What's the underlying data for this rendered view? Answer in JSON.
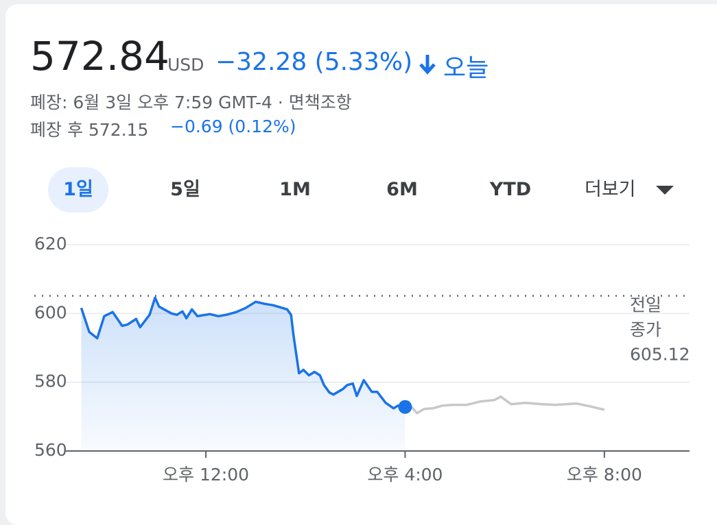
{
  "header": {
    "price": "572.84",
    "currency": "USD",
    "change": "−32.28 (5.33%)",
    "period": "오늘",
    "status": "폐장: 6월 3일 오후 7:59 GMT-4 · 면책조항",
    "after_hours_label": "폐장 후 572.15",
    "after_hours_change": "−0.69 (0.12%)"
  },
  "tabs": {
    "items": [
      "1일",
      "5일",
      "1M",
      "6M",
      "YTD",
      "더보기"
    ],
    "selected": 0
  },
  "chart_data": {
    "type": "line",
    "xlim": [
      9.19,
      21.71
    ],
    "xticks": [
      {
        "value": 12,
        "label": "오후 12:00"
      },
      {
        "value": 16,
        "label": "오후 4:00"
      },
      {
        "value": 20,
        "label": "오후 8:00"
      }
    ],
    "ylim": [
      560,
      620
    ],
    "yticks": [
      560,
      580,
      600,
      620
    ],
    "grid": true,
    "reference_line": {
      "value": 605.12,
      "label": [
        "전일",
        "종가"
      ]
    },
    "series": [
      {
        "color": "#1a73e8",
        "area": true,
        "end_marker": true,
        "x": [
          9.5,
          9.66,
          9.82,
          9.96,
          10.13,
          10.32,
          10.43,
          10.6,
          10.68,
          10.87,
          10.98,
          11.06,
          11.31,
          11.42,
          11.53,
          11.61,
          11.72,
          11.83,
          12.08,
          12.25,
          12.41,
          12.61,
          12.8,
          13.0,
          13.18,
          13.35,
          13.63,
          13.71,
          13.76,
          13.87,
          13.96,
          14.07,
          14.18,
          14.29,
          14.37,
          14.48,
          14.56,
          14.75,
          14.84,
          14.95,
          15.03,
          15.17,
          15.33,
          15.44,
          15.61,
          15.77,
          15.86,
          16.0
        ],
        "values": [
          601.6,
          594.6,
          592.8,
          599.2,
          600.4,
          596.4,
          596.8,
          598.4,
          596,
          599.6,
          604.6,
          602,
          600,
          599.6,
          600.6,
          598.6,
          601.2,
          599.2,
          599.8,
          599.2,
          599.6,
          600.4,
          601.6,
          603.4,
          602.8,
          602.4,
          601.2,
          599.6,
          593.6,
          582.6,
          583.6,
          582,
          583,
          582,
          579.2,
          577,
          576.4,
          578,
          579.2,
          579.6,
          576,
          580.6,
          577.2,
          577.2,
          574,
          572.4,
          573.2,
          572.8
        ]
      },
      {
        "color": "#c8c8c8",
        "x": [
          16.0,
          16.1,
          16.24,
          16.38,
          16.55,
          16.75,
          16.96,
          17.23,
          17.51,
          17.79,
          17.92,
          18.13,
          18.4,
          18.75,
          19.02,
          19.44,
          19.71,
          20.0
        ],
        "values": [
          572.8,
          573.2,
          571,
          572.2,
          572.4,
          573.2,
          573.4,
          573.4,
          574.4,
          574.8,
          575.8,
          573.6,
          574,
          573.6,
          573.4,
          573.8,
          573,
          572
        ]
      }
    ]
  }
}
